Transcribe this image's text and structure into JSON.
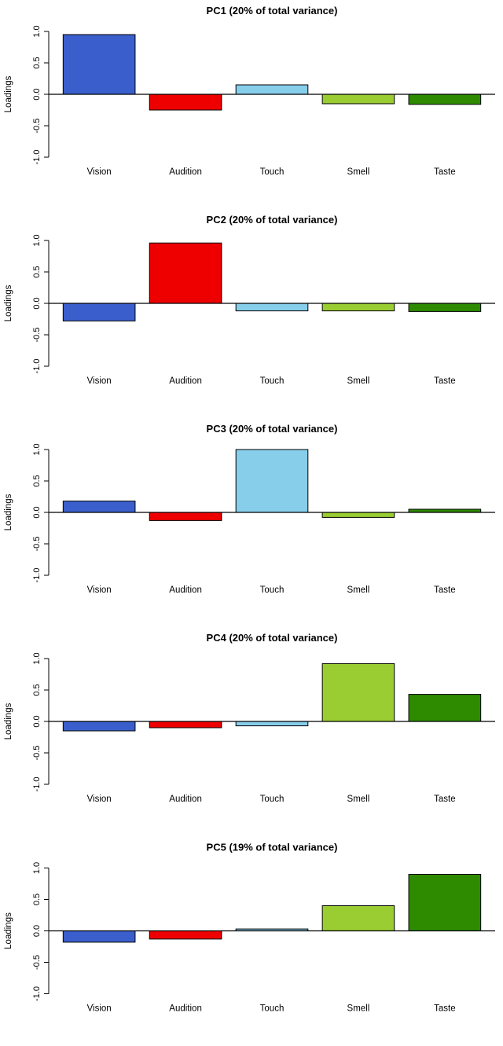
{
  "figure": {
    "description": "Five stacked bar charts of principal component loadings across five senses",
    "background": "#ffffff"
  },
  "chart_data": [
    {
      "id": "pc1",
      "type": "bar",
      "title": "PC1 (20% of total variance)",
      "xlabel": "",
      "ylabel": "Loadings",
      "ylim": [
        -1,
        1
      ],
      "yticks": [
        -1.0,
        -0.5,
        0.0,
        0.5,
        1.0
      ],
      "grid": false,
      "legend": "none",
      "categories": [
        "Vision",
        "Audition",
        "Touch",
        "Smell",
        "Taste"
      ],
      "values": [
        0.95,
        -0.25,
        0.15,
        -0.15,
        -0.16
      ],
      "colors": [
        "#3A5FCD",
        "#EE0000",
        "#87CEEB",
        "#9ACD32",
        "#2E8B00"
      ]
    },
    {
      "id": "pc2",
      "type": "bar",
      "title": "PC2 (20% of total variance)",
      "xlabel": "",
      "ylabel": "Loadings",
      "ylim": [
        -1,
        1
      ],
      "yticks": [
        -1.0,
        -0.5,
        0.0,
        0.5,
        1.0
      ],
      "grid": false,
      "legend": "none",
      "categories": [
        "Vision",
        "Audition",
        "Touch",
        "Smell",
        "Taste"
      ],
      "values": [
        -0.28,
        0.96,
        -0.12,
        -0.12,
        -0.13
      ],
      "colors": [
        "#3A5FCD",
        "#EE0000",
        "#87CEEB",
        "#9ACD32",
        "#2E8B00"
      ]
    },
    {
      "id": "pc3",
      "type": "bar",
      "title": "PC3 (20% of total variance)",
      "xlabel": "",
      "ylabel": "Loadings",
      "ylim": [
        -1,
        1
      ],
      "yticks": [
        -1.0,
        -0.5,
        0.0,
        0.5,
        1.0
      ],
      "grid": false,
      "legend": "none",
      "categories": [
        "Vision",
        "Audition",
        "Touch",
        "Smell",
        "Taste"
      ],
      "values": [
        0.18,
        -0.13,
        1.0,
        -0.08,
        0.05
      ],
      "colors": [
        "#3A5FCD",
        "#EE0000",
        "#87CEEB",
        "#9ACD32",
        "#2E8B00"
      ]
    },
    {
      "id": "pc4",
      "type": "bar",
      "title": "PC4 (20% of total variance)",
      "xlabel": "",
      "ylabel": "Loadings",
      "ylim": [
        -1,
        1
      ],
      "yticks": [
        -1.0,
        -0.5,
        0.0,
        0.5,
        1.0
      ],
      "grid": false,
      "legend": "none",
      "categories": [
        "Vision",
        "Audition",
        "Touch",
        "Smell",
        "Taste"
      ],
      "values": [
        -0.15,
        -0.1,
        -0.07,
        0.92,
        0.43
      ],
      "colors": [
        "#3A5FCD",
        "#EE0000",
        "#87CEEB",
        "#9ACD32",
        "#2E8B00"
      ]
    },
    {
      "id": "pc5",
      "type": "bar",
      "title": "PC5 (19% of total variance)",
      "xlabel": "",
      "ylabel": "Loadings",
      "ylim": [
        -1,
        1
      ],
      "yticks": [
        -1.0,
        -0.5,
        0.0,
        0.5,
        1.0
      ],
      "grid": false,
      "legend": "none",
      "categories": [
        "Vision",
        "Audition",
        "Touch",
        "Smell",
        "Taste"
      ],
      "values": [
        -0.18,
        -0.13,
        0.03,
        0.4,
        0.9
      ],
      "colors": [
        "#3A5FCD",
        "#EE0000",
        "#87CEEB",
        "#9ACD32",
        "#2E8B00"
      ]
    }
  ]
}
